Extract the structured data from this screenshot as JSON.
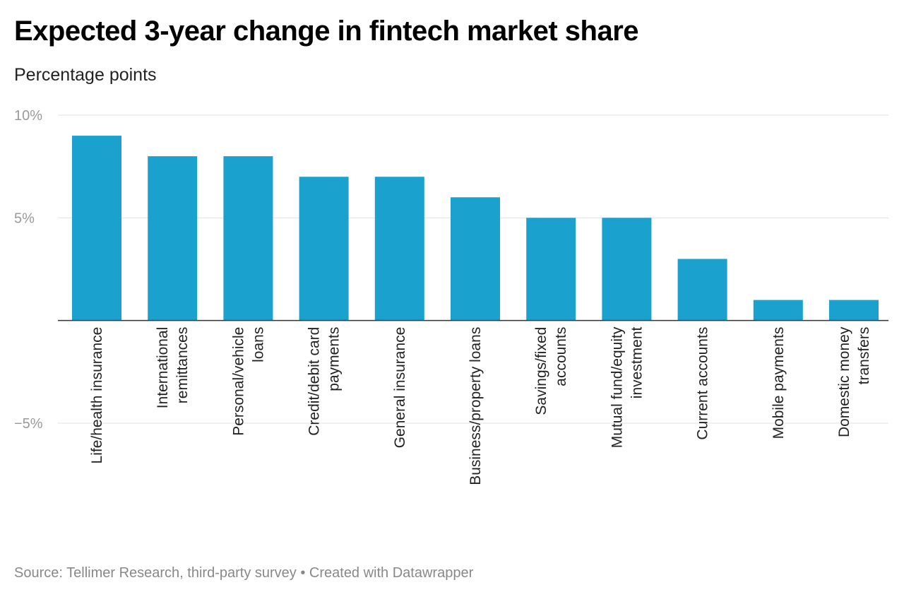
{
  "title": "Expected 3-year change in fintech market share",
  "subtitle": "Percentage points",
  "footer": {
    "source": "Source: Tellimer Research, third-party survey",
    "separator": " • ",
    "credit": "Created with Datawrapper"
  },
  "colors": {
    "bar": "#1aa1cd",
    "grid": "#e0e0e0",
    "baseline": "#333333"
  },
  "chart_data": {
    "type": "bar",
    "title": "Expected 3-year change in fintech market share",
    "subtitle": "Percentage points",
    "categories": [
      "Life/health insurance",
      "International remittances",
      "Personal/vehicle loans",
      "Credit/debit card payments",
      "General insurance",
      "Business/property loans",
      "Savings/fixed accounts",
      "Mutual fund/equity investment",
      "Current accounts",
      "Mobile payments",
      "Domestic money transfers"
    ],
    "category_label_lines": [
      [
        "Life/health insurance"
      ],
      [
        "International",
        "remittances"
      ],
      [
        "Personal/vehicle",
        "loans"
      ],
      [
        "Credit/debit card",
        "payments"
      ],
      [
        "General insurance"
      ],
      [
        "Business/property loans"
      ],
      [
        "Savings/fixed",
        "accounts"
      ],
      [
        "Mutual fund/equity",
        "investment"
      ],
      [
        "Current accounts"
      ],
      [
        "Mobile payments"
      ],
      [
        "Domestic money",
        "transfers"
      ]
    ],
    "values": [
      9,
      8,
      8,
      7,
      7,
      6,
      5,
      5,
      3,
      1,
      1
    ],
    "ylim": [
      -5,
      10
    ],
    "yticks": [
      10,
      5,
      -5
    ],
    "ytick_labels": [
      "10%",
      "5%",
      "−5%"
    ],
    "grid": true,
    "xlabel": "",
    "ylabel": ""
  }
}
